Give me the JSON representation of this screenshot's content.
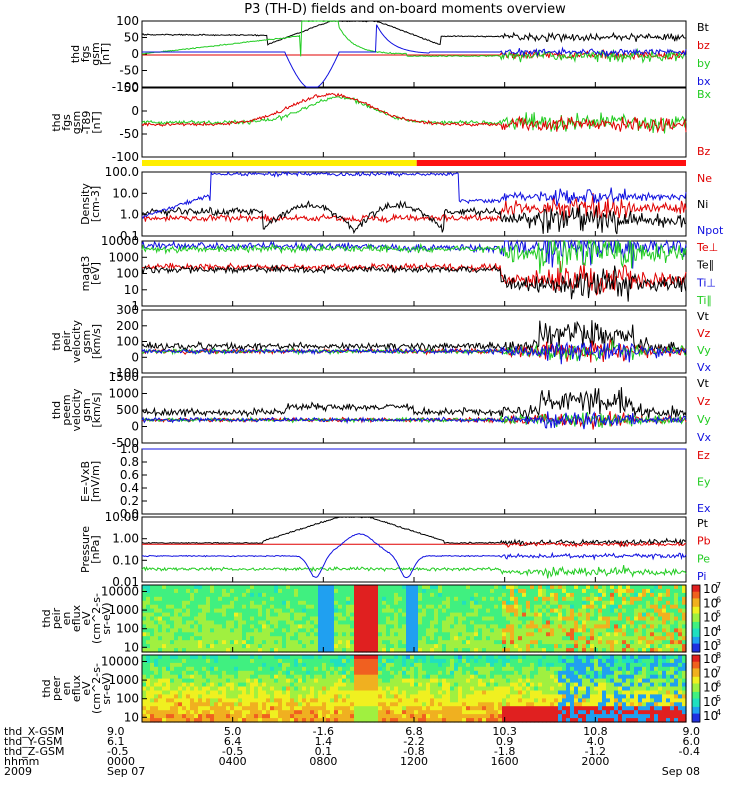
{
  "title": "P3 (TH-D) fields and on-board moments overview",
  "colors": {
    "black": "#000000",
    "red": "#e00000",
    "green": "#22cc22",
    "blue": "#1010e0",
    "bar_yellow": "#ffee00",
    "bar_red": "#ff1010"
  },
  "chart_data": [
    {
      "type": "line",
      "ylabel": [
        "thd",
        "fgs",
        "gsm",
        "[nT]"
      ],
      "ylim": [
        -100,
        100
      ],
      "yticks": [
        "100",
        "50",
        "0",
        "-50",
        "-100"
      ],
      "series": [
        {
          "name": "Bt",
          "color": "#000000"
        },
        {
          "name": "bz",
          "color": "#e00000"
        },
        {
          "name": "by",
          "color": "#22cc22"
        },
        {
          "name": "bx",
          "color": "#1010e0"
        }
      ]
    },
    {
      "type": "line",
      "ylabel": [
        "thd",
        "fgs",
        "gsm",
        "-T89",
        "[nT]"
      ],
      "ylim": [
        -120,
        70
      ],
      "yticks": [
        "50",
        "0",
        "-50",
        "-100"
      ],
      "series": [
        {
          "name": "Bx",
          "color": "#22cc22"
        },
        {
          "name": "Bz",
          "color": "#e00000"
        }
      ]
    },
    {
      "type": "line",
      "ylabel": [
        "Density",
        "[cm-3]"
      ],
      "scale": "log",
      "ylim": [
        0.1,
        100
      ],
      "yticks": [
        "100.0",
        "10.0",
        "1.0",
        "0.1"
      ],
      "series": [
        {
          "name": "Ne",
          "color": "#e00000"
        },
        {
          "name": "Ni",
          "color": "#000000"
        },
        {
          "name": "Npot",
          "color": "#1010e0"
        }
      ]
    },
    {
      "type": "line",
      "ylabel": [
        "magt3",
        "[eV]"
      ],
      "scale": "log",
      "ylim": [
        1,
        10000
      ],
      "yticks": [
        "10000",
        "1000",
        "100",
        "10",
        "1"
      ],
      "series": [
        {
          "name": "Te⊥",
          "color": "#e00000"
        },
        {
          "name": "Te∥",
          "color": "#000000"
        },
        {
          "name": "Ti⊥",
          "color": "#1010e0"
        },
        {
          "name": "Ti∥",
          "color": "#22cc22"
        }
      ]
    },
    {
      "type": "line",
      "ylabel": [
        "thd",
        "peir",
        "velocity",
        "gsm",
        "[km/s]"
      ],
      "ylim": [
        -100,
        300
      ],
      "yticks": [
        "300",
        "200",
        "100",
        "0",
        "-100"
      ],
      "series": [
        {
          "name": "Vt",
          "color": "#000000"
        },
        {
          "name": "Vz",
          "color": "#e00000"
        },
        {
          "name": "Vy",
          "color": "#22cc22"
        },
        {
          "name": "Vx",
          "color": "#1010e0"
        }
      ]
    },
    {
      "type": "line",
      "ylabel": [
        "thd",
        "peem",
        "velocity",
        "gsm",
        "[km/s]"
      ],
      "ylim": [
        -600,
        1500
      ],
      "yticks": [
        "1500",
        "1000",
        "500",
        "0",
        "-500"
      ],
      "series": [
        {
          "name": "Vt",
          "color": "#000000"
        },
        {
          "name": "Vz",
          "color": "#e00000"
        },
        {
          "name": "Vy",
          "color": "#22cc22"
        },
        {
          "name": "Vx",
          "color": "#1010e0"
        }
      ]
    },
    {
      "type": "line",
      "ylabel": [
        "E=-VxB",
        "[mV/m]"
      ],
      "ylim": [
        0,
        1
      ],
      "yticks": [
        "1.0",
        "0.8",
        "0.6",
        "0.4",
        "0.2",
        "0.0"
      ],
      "series": [
        {
          "name": "Ez",
          "color": "#e00000"
        },
        {
          "name": "Ey",
          "color": "#22cc22"
        },
        {
          "name": "Ex",
          "color": "#1010e0"
        }
      ]
    },
    {
      "type": "line",
      "ylabel": [
        "Pressure",
        "[nPa]"
      ],
      "scale": "log",
      "ylim": [
        0.001,
        100
      ],
      "yticks": [
        "10.00",
        "1.00",
        "0.10",
        "0.01"
      ],
      "series": [
        {
          "name": "Pt",
          "color": "#000000"
        },
        {
          "name": "Pb",
          "color": "#e00000"
        },
        {
          "name": "Pe",
          "color": "#22cc22"
        },
        {
          "name": "Pi",
          "color": "#1010e0"
        }
      ]
    },
    {
      "type": "heatmap",
      "ylabel": [
        "thd",
        "peir",
        "en",
        "eflux",
        "eV",
        "(cm^2-s-",
        "sr-eV)"
      ],
      "scale": "log",
      "ylim": [
        10,
        20000
      ],
      "yticks": [
        "10000",
        "1000",
        "100",
        "10"
      ],
      "colorbar": {
        "ticks": [
          "10",
          "10",
          "10",
          "10",
          "10"
        ],
        "exponents": [
          "7",
          "6",
          "5",
          "4",
          "3"
        ]
      }
    },
    {
      "type": "heatmap",
      "ylabel": [
        "thd",
        "peer",
        "en",
        "eflux",
        "eV",
        "(cm^2-s-",
        "sr-eV)"
      ],
      "scale": "log",
      "ylim": [
        10,
        20000
      ],
      "yticks": [
        "10000",
        "1000",
        "100",
        "10"
      ],
      "colorbar": {
        "ticks": [
          "10",
          "10",
          "10",
          "10",
          "10"
        ],
        "exponents": [
          "8",
          "7",
          "6",
          "5",
          "4"
        ]
      }
    }
  ],
  "x_axis": {
    "row_labels": [
      "thd_X-GSM",
      "thd_Y-GSM",
      "thd_Z-GSM",
      "hhmm",
      "2009"
    ],
    "columns": [
      [
        "9.0",
        "6.1",
        "-0.5",
        "0000",
        "Sep 07"
      ],
      [
        "5.0",
        "6.4",
        "-0.5",
        "0400",
        ""
      ],
      [
        "-1.6",
        "1.4",
        "0.1",
        "0800",
        ""
      ],
      [
        "6.8",
        "-2.2",
        "-0.8",
        "1200",
        ""
      ],
      [
        "10.3",
        "0.9",
        "-1.8",
        "1600",
        ""
      ],
      [
        "10.8",
        "4.0",
        "-1.2",
        "2000",
        ""
      ],
      [
        "9.0",
        "6.0",
        "-0.4",
        "",
        "Sep 08"
      ]
    ]
  }
}
